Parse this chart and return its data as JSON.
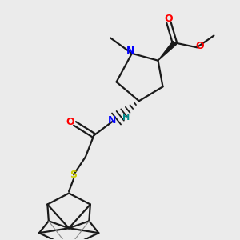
{
  "bg_color": "#ebebeb",
  "bond_color": "#1a1a1a",
  "N_color": "#0000ff",
  "O_color": "#ff0000",
  "S_color": "#cccc00",
  "H_color": "#008b8b",
  "line_width": 1.6,
  "figsize": [
    3.0,
    3.0
  ],
  "dpi": 100,
  "xlim": [
    0,
    10
  ],
  "ylim": [
    0,
    10
  ]
}
